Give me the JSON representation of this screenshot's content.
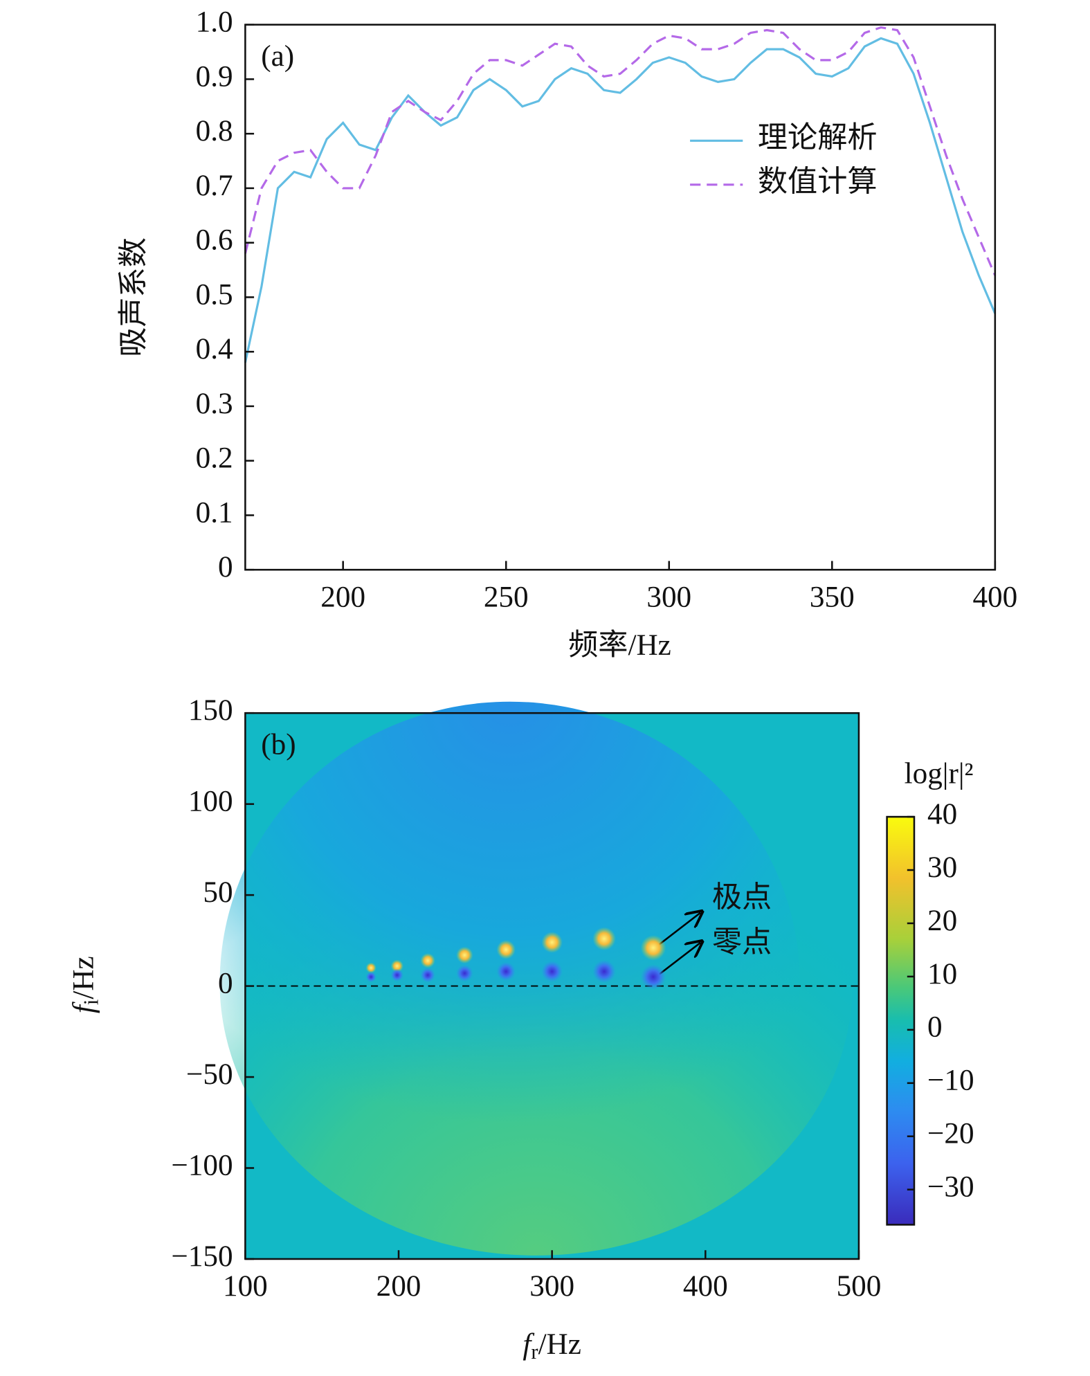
{
  "chart_data": [
    {
      "type": "line",
      "panel_label": "(a)",
      "x_label": "频率/Hz",
      "y_label": "吸声系数",
      "x": [
        170,
        175,
        180,
        185,
        190,
        195,
        200,
        205,
        210,
        215,
        220,
        225,
        230,
        235,
        240,
        245,
        250,
        255,
        260,
        265,
        270,
        275,
        280,
        285,
        290,
        295,
        300,
        305,
        310,
        315,
        320,
        325,
        330,
        335,
        340,
        345,
        350,
        355,
        360,
        365,
        370,
        375,
        380,
        385,
        390,
        395,
        400
      ],
      "series": [
        {
          "name": "理论解析",
          "color": "#62bde3",
          "dash": false,
          "values": [
            0.38,
            0.52,
            0.7,
            0.73,
            0.72,
            0.79,
            0.82,
            0.78,
            0.77,
            0.83,
            0.87,
            0.84,
            0.815,
            0.83,
            0.88,
            0.9,
            0.88,
            0.85,
            0.86,
            0.9,
            0.92,
            0.91,
            0.88,
            0.875,
            0.9,
            0.93,
            0.94,
            0.93,
            0.905,
            0.895,
            0.9,
            0.93,
            0.955,
            0.955,
            0.94,
            0.91,
            0.905,
            0.92,
            0.96,
            0.975,
            0.965,
            0.91,
            0.82,
            0.72,
            0.62,
            0.54,
            0.47
          ]
        },
        {
          "name": "数值计算",
          "color": "#b469e8",
          "dash": true,
          "values": [
            0.58,
            0.7,
            0.75,
            0.765,
            0.77,
            0.73,
            0.7,
            0.7,
            0.76,
            0.84,
            0.86,
            0.84,
            0.825,
            0.86,
            0.91,
            0.935,
            0.935,
            0.925,
            0.945,
            0.965,
            0.96,
            0.925,
            0.905,
            0.91,
            0.935,
            0.965,
            0.98,
            0.975,
            0.955,
            0.955,
            0.965,
            0.985,
            0.99,
            0.985,
            0.955,
            0.935,
            0.935,
            0.95,
            0.985,
            0.995,
            0.99,
            0.94,
            0.85,
            0.76,
            0.68,
            0.61,
            0.54
          ]
        }
      ],
      "xlim": [
        170,
        400
      ],
      "xticks": [
        200,
        250,
        300,
        350,
        400
      ],
      "ylim": [
        0,
        1
      ],
      "yticks": [
        0,
        0.1,
        0.2,
        0.3,
        0.4,
        0.5,
        0.6,
        0.7,
        0.8,
        0.9,
        {
          "value": 1,
          "label": "1.0"
        }
      ]
    },
    {
      "type": "contour",
      "panel_label": "(b)",
      "x_label": {
        "symbol": "f",
        "subscript": "r",
        "unit": "/Hz"
      },
      "y_label": {
        "symbol": "f",
        "subscript": "i",
        "unit": "/Hz"
      },
      "xlim": [
        100,
        500
      ],
      "xticks": [
        100,
        200,
        300,
        400,
        500
      ],
      "ylim": [
        -150,
        150
      ],
      "yticks": [
        {
          "value": -150,
          "label": "−150"
        },
        {
          "value": -100,
          "label": "−100"
        },
        {
          "value": -50,
          "label": "−50"
        },
        0,
        50,
        100,
        150
      ],
      "reference_line": 0,
      "poles": {
        "x": [
          182,
          199,
          219,
          243,
          270,
          300,
          334,
          366
        ],
        "y": [
          10,
          11,
          14,
          17,
          20,
          24,
          26,
          21
        ]
      },
      "zeros": {
        "x": [
          182,
          199,
          219,
          243,
          270,
          300,
          334,
          366
        ],
        "y": [
          5,
          6,
          6,
          7,
          8,
          8,
          8,
          5
        ]
      },
      "annotations": [
        "极点",
        "零点"
      ],
      "colorbar_label": "log|r|²",
      "clim": [
        -36.6,
        40
      ],
      "colorbar_ticks": [
        {
          "value": -30,
          "label": "−30"
        },
        {
          "value": -20,
          "label": "−20"
        },
        {
          "value": -10,
          "label": "−10"
        },
        0,
        10,
        20,
        30,
        40
      ]
    }
  ]
}
